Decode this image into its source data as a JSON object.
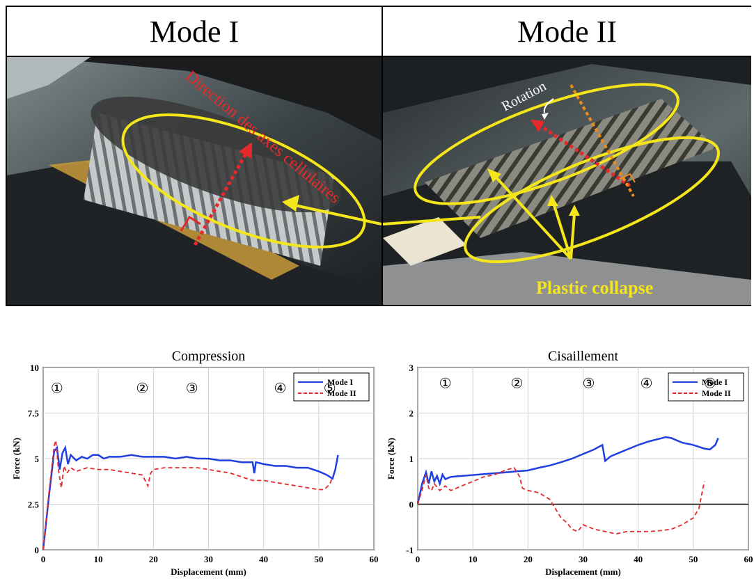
{
  "photos": {
    "mode_i": {
      "title": "Mode I",
      "annotation_direction": "Direction des axes cellulaires"
    },
    "mode_ii": {
      "title": "Mode II",
      "annotation_rotation": "Rotation",
      "annotation_plastic": "Plastic collapse"
    }
  },
  "colors": {
    "mode_i": "#1f3fe0",
    "mode_ii": "#e8292b",
    "yellow": "#f4e61a",
    "orange": "#f08a1c"
  },
  "chart_data": [
    {
      "type": "line",
      "title": "Compression",
      "xlabel": "Displacement (mm)",
      "ylabel": "Force (kN)",
      "xlim": [
        0,
        60
      ],
      "ylim": [
        0,
        10
      ],
      "xticks": [
        "0",
        "10",
        "20",
        "30",
        "40",
        "50",
        "60"
      ],
      "yticks": [
        "0",
        "2.5",
        "5",
        "7.5",
        "10"
      ],
      "grid": true,
      "legend": "top-right",
      "markers": [
        "①",
        "②",
        "③",
        "④",
        "⑤"
      ],
      "series": [
        {
          "name": "Mode I",
          "style": "solid",
          "points": [
            [
              0,
              0
            ],
            [
              1,
              2.8
            ],
            [
              2,
              5.4
            ],
            [
              2.5,
              5.6
            ],
            [
              3,
              4.4
            ],
            [
              3.5,
              5.3
            ],
            [
              4,
              5.6
            ],
            [
              4.5,
              4.7
            ],
            [
              5,
              5.2
            ],
            [
              6,
              4.9
            ],
            [
              7,
              5.1
            ],
            [
              8,
              5.0
            ],
            [
              9,
              5.2
            ],
            [
              10,
              5.2
            ],
            [
              11,
              5.0
            ],
            [
              12,
              5.1
            ],
            [
              14,
              5.1
            ],
            [
              16,
              5.2
            ],
            [
              18,
              5.1
            ],
            [
              20,
              5.1
            ],
            [
              22,
              5.1
            ],
            [
              24,
              5.0
            ],
            [
              26,
              5.1
            ],
            [
              28,
              5.0
            ],
            [
              30,
              5.0
            ],
            [
              32,
              4.9
            ],
            [
              34,
              4.9
            ],
            [
              36,
              4.8
            ],
            [
              38,
              4.8
            ],
            [
              38.3,
              4.2
            ],
            [
              38.6,
              4.8
            ],
            [
              40,
              4.7
            ],
            [
              42,
              4.6
            ],
            [
              44,
              4.6
            ],
            [
              46,
              4.5
            ],
            [
              48,
              4.5
            ],
            [
              50,
              4.3
            ],
            [
              51.5,
              4.1
            ],
            [
              52.5,
              3.9
            ],
            [
              53,
              4.4
            ],
            [
              53.5,
              5.2
            ]
          ]
        },
        {
          "name": "Mode II",
          "style": "dashed",
          "points": [
            [
              0,
              0
            ],
            [
              1,
              3.0
            ],
            [
              2,
              5.7
            ],
            [
              2.3,
              6.0
            ],
            [
              2.8,
              4.3
            ],
            [
              3.3,
              3.4
            ],
            [
              3.8,
              4.6
            ],
            [
              4.3,
              4.2
            ],
            [
              5,
              4.5
            ],
            [
              6,
              4.3
            ],
            [
              8,
              4.5
            ],
            [
              10,
              4.4
            ],
            [
              12,
              4.4
            ],
            [
              14,
              4.3
            ],
            [
              16,
              4.2
            ],
            [
              18,
              4.1
            ],
            [
              19,
              3.5
            ],
            [
              19.5,
              4.2
            ],
            [
              20,
              4.4
            ],
            [
              22,
              4.5
            ],
            [
              24,
              4.5
            ],
            [
              26,
              4.5
            ],
            [
              28,
              4.5
            ],
            [
              30,
              4.4
            ],
            [
              32,
              4.3
            ],
            [
              34,
              4.2
            ],
            [
              36,
              4.0
            ],
            [
              38,
              3.8
            ],
            [
              40,
              3.8
            ],
            [
              42,
              3.7
            ],
            [
              44,
              3.6
            ],
            [
              46,
              3.5
            ],
            [
              48,
              3.4
            ],
            [
              50,
              3.3
            ],
            [
              51,
              3.3
            ],
            [
              52,
              3.6
            ],
            [
              52.5,
              4.0
            ]
          ]
        }
      ]
    },
    {
      "type": "line",
      "title": "Cisaillement",
      "xlabel": "Displacement (mm)",
      "ylabel": "Force (kN)",
      "xlim": [
        0,
        60
      ],
      "ylim": [
        -1,
        3
      ],
      "xticks": [
        "0",
        "10",
        "20",
        "30",
        "40",
        "50",
        "60"
      ],
      "yticks": [
        "-1",
        "0",
        "1",
        "2",
        "3"
      ],
      "grid": true,
      "legend": "top-right",
      "markers": [
        "①",
        "②",
        "③",
        "④",
        "⑤"
      ],
      "series": [
        {
          "name": "Mode I",
          "style": "solid",
          "points": [
            [
              0,
              0
            ],
            [
              0.8,
              0.45
            ],
            [
              1.5,
              0.7
            ],
            [
              2,
              0.45
            ],
            [
              2.5,
              0.72
            ],
            [
              3,
              0.5
            ],
            [
              3.5,
              0.62
            ],
            [
              4,
              0.45
            ],
            [
              4.5,
              0.65
            ],
            [
              5,
              0.55
            ],
            [
              6,
              0.6
            ],
            [
              8,
              0.62
            ],
            [
              10,
              0.64
            ],
            [
              12,
              0.66
            ],
            [
              14,
              0.68
            ],
            [
              16,
              0.7
            ],
            [
              18,
              0.72
            ],
            [
              20,
              0.74
            ],
            [
              22,
              0.8
            ],
            [
              24,
              0.85
            ],
            [
              26,
              0.92
            ],
            [
              28,
              1.0
            ],
            [
              30,
              1.1
            ],
            [
              32,
              1.2
            ],
            [
              33.5,
              1.3
            ],
            [
              34,
              0.95
            ],
            [
              35,
              1.05
            ],
            [
              36,
              1.1
            ],
            [
              38,
              1.2
            ],
            [
              40,
              1.3
            ],
            [
              42,
              1.38
            ],
            [
              44,
              1.44
            ],
            [
              45,
              1.47
            ],
            [
              46,
              1.45
            ],
            [
              47,
              1.4
            ],
            [
              48,
              1.35
            ],
            [
              50,
              1.3
            ],
            [
              52,
              1.22
            ],
            [
              53,
              1.2
            ],
            [
              54,
              1.3
            ],
            [
              54.5,
              1.45
            ]
          ]
        },
        {
          "name": "Mode II",
          "style": "dashed",
          "points": [
            [
              0,
              0
            ],
            [
              1,
              0.4
            ],
            [
              1.5,
              0.65
            ],
            [
              2,
              0.35
            ],
            [
              2.5,
              0.3
            ],
            [
              3,
              0.45
            ],
            [
              4,
              0.3
            ],
            [
              5,
              0.4
            ],
            [
              6,
              0.3
            ],
            [
              8,
              0.4
            ],
            [
              10,
              0.5
            ],
            [
              12,
              0.6
            ],
            [
              14,
              0.65
            ],
            [
              16,
              0.75
            ],
            [
              17.5,
              0.8
            ],
            [
              18.5,
              0.6
            ],
            [
              19,
              0.35
            ],
            [
              20,
              0.3
            ],
            [
              22,
              0.25
            ],
            [
              24,
              0.1
            ],
            [
              25,
              -0.1
            ],
            [
              26,
              -0.3
            ],
            [
              27,
              -0.4
            ],
            [
              28,
              -0.55
            ],
            [
              29,
              -0.6
            ],
            [
              30,
              -0.45
            ],
            [
              31,
              -0.5
            ],
            [
              32,
              -0.55
            ],
            [
              34,
              -0.6
            ],
            [
              36,
              -0.65
            ],
            [
              38,
              -0.6
            ],
            [
              40,
              -0.6
            ],
            [
              42,
              -0.6
            ],
            [
              44,
              -0.58
            ],
            [
              46,
              -0.55
            ],
            [
              48,
              -0.45
            ],
            [
              50,
              -0.3
            ],
            [
              51,
              -0.1
            ],
            [
              51.5,
              0.2
            ],
            [
              52,
              0.5
            ]
          ]
        }
      ]
    }
  ]
}
